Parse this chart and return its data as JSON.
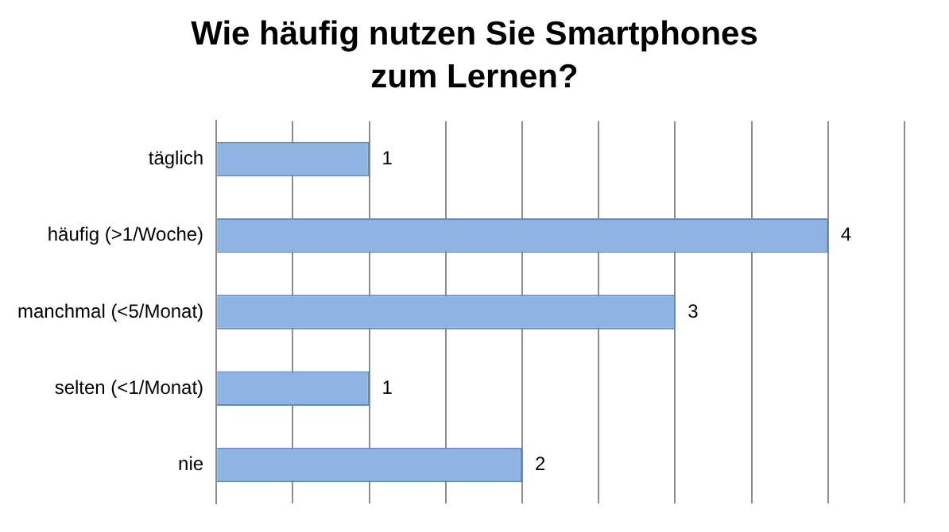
{
  "chart_data": {
    "type": "bar",
    "title": "Wie häufig nutzen Sie Smartphones zum Lernen?",
    "orientation": "horizontal",
    "categories": [
      "täglich",
      "häufig (>1/Woche)",
      "manchmal (<5/Monat)",
      "selten (<1/Monat)",
      "nie"
    ],
    "values": [
      1,
      4,
      3,
      1,
      2
    ],
    "color": "#8db4e2",
    "xlim": [
      0,
      4.5
    ],
    "xticks": [
      {
        "value": 0,
        "label": null
      },
      {
        "value": 0.5,
        "label": null
      },
      {
        "value": 1,
        "label": null
      },
      {
        "value": 1.5,
        "label": null
      },
      {
        "value": 2,
        "label": null
      },
      {
        "value": 2.5,
        "label": null
      },
      {
        "value": 3,
        "label": null
      },
      {
        "value": 3.5,
        "label": null
      },
      {
        "value": 4,
        "label": null
      }
    ],
    "grid": "x",
    "tick_labels": "y",
    "data_labels": true
  }
}
